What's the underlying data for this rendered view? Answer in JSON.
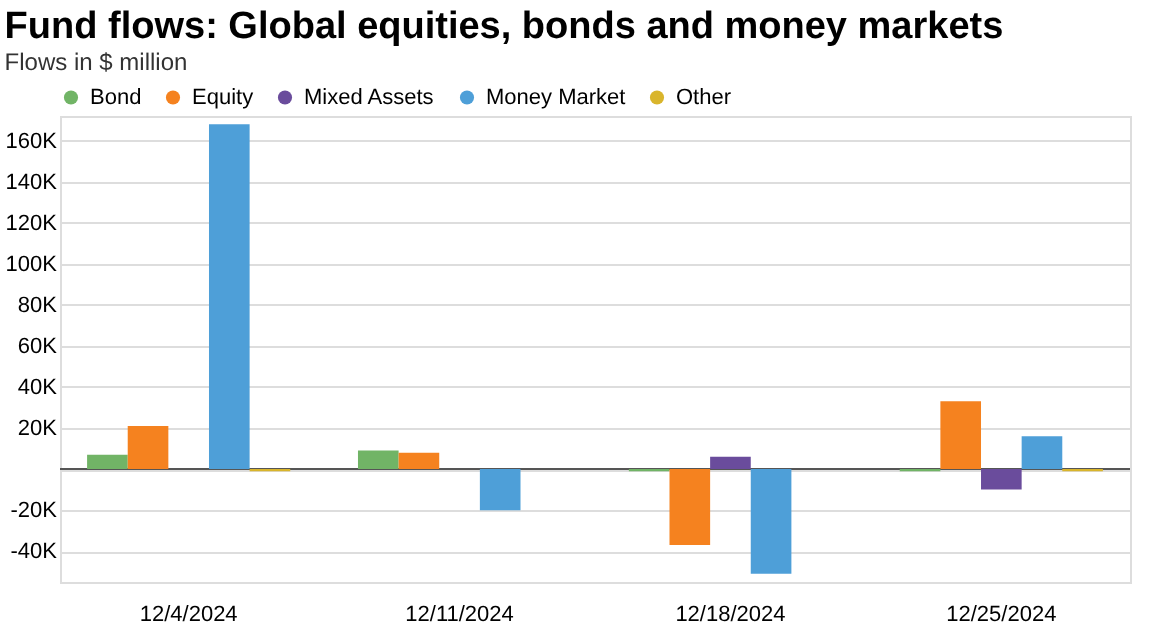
{
  "chart_data": {
    "type": "bar",
    "title": "Fund flows: Global equities, bonds and money markets",
    "subtitle": "Flows in $ million",
    "categories": [
      "12/4/2024",
      "12/11/2024",
      "12/18/2024",
      "12/25/2024"
    ],
    "series": [
      {
        "name": "Bond",
        "color": "#71b466",
        "values": [
          7000,
          9000,
          -1000,
          -1000
        ]
      },
      {
        "name": "Equity",
        "color": "#f5821f",
        "values": [
          21000,
          8000,
          -37000,
          33000
        ]
      },
      {
        "name": "Mixed Assets",
        "color": "#6a4c9c",
        "values": [
          0,
          0,
          6000,
          -10000
        ]
      },
      {
        "name": "Money Market",
        "color": "#4e9fd8",
        "values": [
          168000,
          -20000,
          -51000,
          16000
        ]
      },
      {
        "name": "Other",
        "color": "#d9b52c",
        "values": [
          -1000,
          0,
          0,
          -1000
        ]
      }
    ],
    "ylim": [
      -55000,
      172000
    ],
    "yticks": [
      {
        "value": -40000,
        "label": "-40K"
      },
      {
        "value": -20000,
        "label": "-20K"
      },
      {
        "value": 0,
        "label": null
      },
      {
        "value": 20000,
        "label": "20K"
      },
      {
        "value": 40000,
        "label": "40K"
      },
      {
        "value": 60000,
        "label": "60K"
      },
      {
        "value": 80000,
        "label": "80K"
      },
      {
        "value": 100000,
        "label": "100K"
      },
      {
        "value": 120000,
        "label": "120K"
      },
      {
        "value": 140000,
        "label": "140K"
      },
      {
        "value": 160000,
        "label": "160K"
      }
    ],
    "ref_lines": [
      {
        "axis": "y",
        "value": 0,
        "color": "#555555"
      }
    ],
    "grid": "y",
    "legend": "top left"
  }
}
